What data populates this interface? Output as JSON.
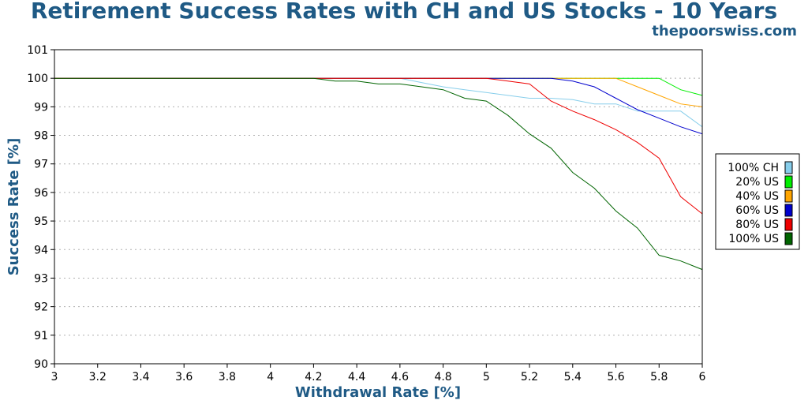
{
  "chart_data": {
    "type": "line",
    "title": "Retirement Success Rates with CH and US Stocks - 10 Years",
    "subtitle": "thepoorswiss.com",
    "xlabel": "Withdrawal Rate [%]",
    "ylabel": "Success Rate [%]",
    "xlim": [
      3,
      6
    ],
    "ylim": [
      90,
      101
    ],
    "x_ticks": [
      "3",
      "3.2",
      "3.4",
      "3.6",
      "3.8",
      "4",
      "4.2",
      "4.4",
      "4.6",
      "4.8",
      "5",
      "5.2",
      "5.4",
      "5.6",
      "5.8",
      "6"
    ],
    "y_ticks": [
      "90",
      "91",
      "92",
      "93",
      "94",
      "95",
      "96",
      "97",
      "98",
      "99",
      "100",
      "101"
    ],
    "grid": "horizontal dotted",
    "legend_position": "right",
    "x": [
      3.0,
      3.1,
      3.2,
      3.3,
      3.4,
      3.5,
      3.6,
      3.7,
      3.8,
      3.9,
      4.0,
      4.1,
      4.2,
      4.3,
      4.4,
      4.5,
      4.6,
      4.7,
      4.8,
      4.9,
      5.0,
      5.1,
      5.2,
      5.3,
      5.4,
      5.5,
      5.6,
      5.7,
      5.8,
      5.9,
      6.0
    ],
    "series": [
      {
        "name": "100% CH",
        "color": "#87ceeb",
        "values": [
          100,
          100,
          100,
          100,
          100,
          100,
          100,
          100,
          100,
          100,
          100,
          100,
          100,
          100,
          100,
          100,
          100,
          99.85,
          99.7,
          99.6,
          99.5,
          99.4,
          99.3,
          99.3,
          99.25,
          99.1,
          99.1,
          98.85,
          98.85,
          98.85,
          98.3
        ]
      },
      {
        "name": "20% US",
        "color": "#00ee00",
        "values": [
          100,
          100,
          100,
          100,
          100,
          100,
          100,
          100,
          100,
          100,
          100,
          100,
          100,
          100,
          100,
          100,
          100,
          100,
          100,
          100,
          100,
          100,
          100,
          100,
          100,
          100,
          100,
          100,
          100,
          99.6,
          99.4
        ]
      },
      {
        "name": "40% US",
        "color": "#ffa500",
        "values": [
          100,
          100,
          100,
          100,
          100,
          100,
          100,
          100,
          100,
          100,
          100,
          100,
          100,
          100,
          100,
          100,
          100,
          100,
          100,
          100,
          100,
          100,
          100,
          100,
          100,
          100,
          100,
          99.7,
          99.4,
          99.1,
          99.0
        ]
      },
      {
        "name": "60% US",
        "color": "#0000cd",
        "values": [
          100,
          100,
          100,
          100,
          100,
          100,
          100,
          100,
          100,
          100,
          100,
          100,
          100,
          100,
          100,
          100,
          100,
          100,
          100,
          100,
          100,
          100,
          100,
          100,
          99.9,
          99.7,
          99.3,
          98.9,
          98.6,
          98.3,
          98.05
        ]
      },
      {
        "name": "80% US",
        "color": "#ee0000",
        "values": [
          100,
          100,
          100,
          100,
          100,
          100,
          100,
          100,
          100,
          100,
          100,
          100,
          100,
          100,
          100,
          100,
          100,
          100,
          100,
          100,
          100,
          99.9,
          99.8,
          99.2,
          98.85,
          98.55,
          98.2,
          97.75,
          97.2,
          95.85,
          95.25
        ]
      },
      {
        "name": "100% US",
        "color": "#006400",
        "values": [
          100,
          100,
          100,
          100,
          100,
          100,
          100,
          100,
          100,
          100,
          100,
          100,
          100,
          99.9,
          99.9,
          99.8,
          99.8,
          99.7,
          99.6,
          99.3,
          99.2,
          98.7,
          98.05,
          97.55,
          96.7,
          96.15,
          95.35,
          94.75,
          93.8,
          93.6,
          93.3
        ]
      }
    ]
  },
  "colors": {
    "title": "#1f5a85",
    "axis_title": "#1f5a85",
    "grid": "#b0b0b0"
  }
}
